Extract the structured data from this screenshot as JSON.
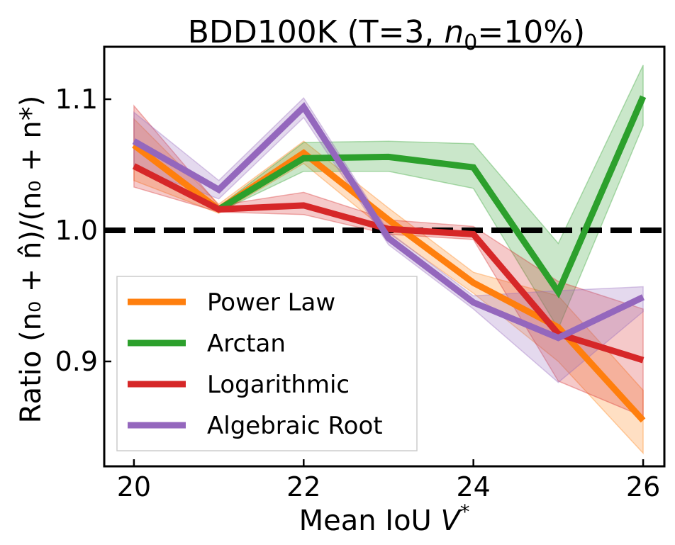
{
  "chart_data": {
    "type": "line",
    "title_main": "BDD100K (T=3, ",
    "title_var": "n",
    "title_sub": "0",
    "title_rest": "=10%)",
    "xlabel_main": "Mean IoU ",
    "xlabel_var": "V",
    "xlabel_sup": "*",
    "ylabel": "Ratio (n₀ + n̂)/(n₀ + n*)",
    "xlim": [
      19.65,
      26.25
    ],
    "ylim": [
      0.82,
      1.14
    ],
    "xticks": [
      20,
      22,
      24,
      26
    ],
    "xtick_labels": [
      "20",
      "22",
      "24",
      "26"
    ],
    "yticks": [
      0.9,
      1.0,
      1.1
    ],
    "ytick_labels": [
      "0.9",
      "1.0",
      "1.1"
    ],
    "reference_line": {
      "y": 1.0,
      "style": "dashed",
      "color": "#000000"
    },
    "legend_position": "lower-left",
    "x": [
      20,
      21,
      22,
      23,
      24,
      25,
      26
    ],
    "series": [
      {
        "name": "Power Law",
        "color": "#ff7f0e",
        "values": [
          1.065,
          1.016,
          1.059,
          1.008,
          0.96,
          0.926,
          0.855
        ],
        "lower": [
          1.038,
          1.013,
          1.051,
          0.998,
          0.952,
          0.9,
          0.83
        ],
        "upper": [
          1.085,
          1.02,
          1.068,
          1.017,
          0.968,
          0.95,
          0.878
        ]
      },
      {
        "name": "Arctan",
        "color": "#2ca02c",
        "values": [
          null,
          1.016,
          1.055,
          1.056,
          1.048,
          0.953,
          1.102
        ],
        "lower": [
          null,
          1.014,
          1.045,
          1.045,
          1.032,
          0.925,
          1.08
        ],
        "upper": [
          null,
          1.018,
          1.067,
          1.068,
          1.066,
          0.99,
          1.126
        ]
      },
      {
        "name": "Logarithmic",
        "color": "#d62728",
        "values": [
          1.049,
          1.016,
          1.019,
          1.001,
          0.997,
          0.921,
          0.901
        ],
        "lower": [
          1.033,
          1.014,
          1.012,
          0.997,
          0.993,
          0.885,
          0.858
        ],
        "upper": [
          1.095,
          1.019,
          1.029,
          1.008,
          1.003,
          0.961,
          0.94
        ]
      },
      {
        "name": "Algebraic Root",
        "color": "#9467bd",
        "values": [
          1.068,
          1.031,
          1.094,
          0.994,
          0.945,
          0.918,
          0.949
        ],
        "lower": [
          1.048,
          1.024,
          1.086,
          0.989,
          0.94,
          0.884,
          0.938
        ],
        "upper": [
          1.09,
          1.038,
          1.101,
          0.999,
          0.95,
          0.954,
          0.957
        ]
      }
    ]
  }
}
